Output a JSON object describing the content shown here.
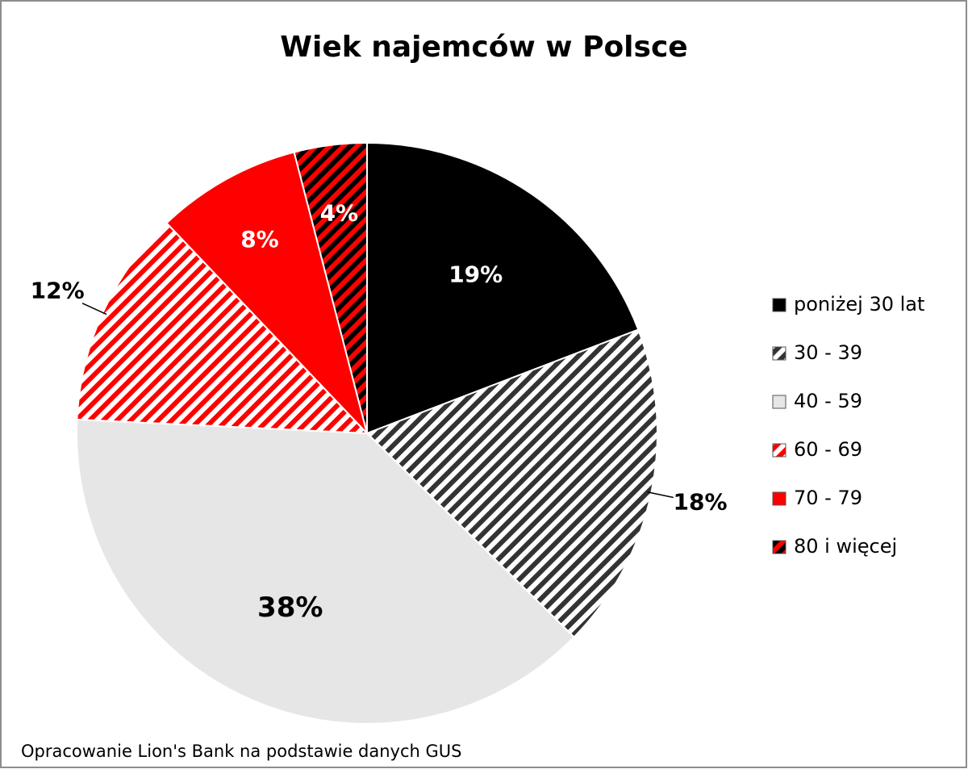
{
  "chart_data": {
    "type": "pie",
    "title": "Wiek najemców w Polsce",
    "categories": [
      "poniżej 30 lat",
      "30 - 39",
      "40 - 59",
      "60 - 69",
      "70 - 79",
      "80 i więcej"
    ],
    "values": [
      19,
      18,
      38,
      12,
      8,
      4
    ],
    "value_labels": [
      "19%",
      "18%",
      "38%",
      "12%",
      "8%",
      "4%"
    ],
    "colors": [
      "#000000",
      "#ffffff",
      "#e6e6e6",
      "#ffffff",
      "#ff0000",
      "#ff0000"
    ],
    "hatch_colors": [
      null,
      "#333333",
      null,
      "#ff0000",
      null,
      "#000000"
    ],
    "legend": "right",
    "source": "Opracowanie Lion's Bank na podstawie danych  GUS"
  }
}
